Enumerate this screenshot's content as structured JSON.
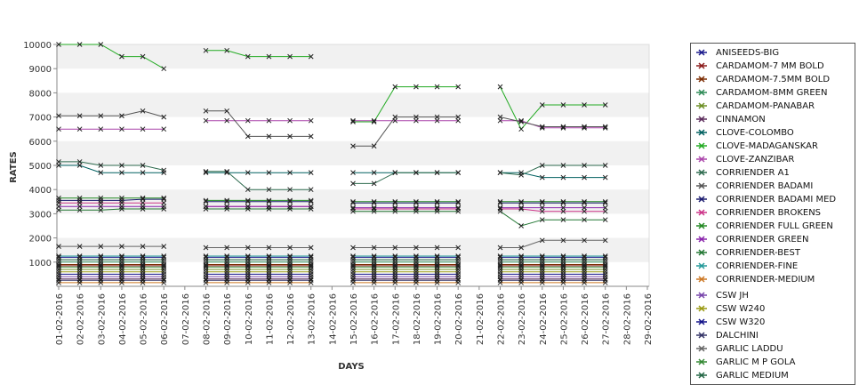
{
  "chart_data": {
    "type": "line",
    "xlabel": "DAYS",
    "ylabel": "RATES",
    "ylim": [
      0,
      10000
    ],
    "yticks": [
      1000,
      2000,
      3000,
      4000,
      5000,
      6000,
      7000,
      8000,
      9000,
      10000
    ],
    "grid": "alternating horizontal bands",
    "legend_position": "right",
    "x": [
      "01-02-2016",
      "02-02-2016",
      "03-02-2016",
      "04-02-2016",
      "05-02-2016",
      "06-02-2016",
      "07-02-2016",
      "08-02-2016",
      "09-02-2016",
      "10-02-2016",
      "11-02-2016",
      "12-02-2016",
      "13-02-2016",
      "14-02-2016",
      "15-02-2016",
      "16-02-2016",
      "17-02-2016",
      "18-02-2016",
      "19-02-2016",
      "20-02-2016",
      "21-02-2016",
      "22-02-2016",
      "23-02-2016",
      "24-02-2016",
      "25-02-2016",
      "26-02-2016",
      "27-02-2016",
      "28-02-2016",
      "29-02-2016"
    ],
    "series": [
      {
        "name": "ANISEEDS-BIG",
        "color": "#1a1a8c",
        "values": [
          1200,
          1200,
          1200,
          1200,
          1200,
          1200,
          null,
          1200,
          1200,
          1200,
          1200,
          1200,
          1200,
          null,
          1200,
          1200,
          1200,
          1200,
          1200,
          1200,
          null,
          1200,
          1200,
          1200,
          1200,
          1200,
          1200,
          null,
          null
        ]
      },
      {
        "name": "CARDAMOM-7 MM BOLD",
        "color": "#8b1a1a",
        "values": [
          850,
          850,
          850,
          850,
          850,
          850,
          null,
          850,
          850,
          850,
          850,
          850,
          850,
          null,
          850,
          850,
          850,
          850,
          850,
          850,
          null,
          850,
          850,
          850,
          850,
          850,
          850,
          null,
          null
        ]
      },
      {
        "name": "CARDAMOM-7.5MM BOLD",
        "color": "#7a2a00",
        "values": [
          900,
          900,
          900,
          900,
          900,
          900,
          null,
          900,
          900,
          900,
          900,
          900,
          900,
          null,
          900,
          900,
          900,
          900,
          900,
          900,
          null,
          900,
          900,
          900,
          900,
          900,
          900,
          null,
          null
        ]
      },
      {
        "name": "CARDAMOM-8MM GREEN",
        "color": "#2e8b57",
        "values": [
          1000,
          1000,
          1000,
          1000,
          1000,
          1000,
          null,
          1000,
          1000,
          1000,
          1000,
          1000,
          1000,
          null,
          1000,
          1000,
          1000,
          1000,
          1000,
          1000,
          null,
          1000,
          1000,
          1000,
          1000,
          1000,
          1000,
          null,
          null
        ]
      },
      {
        "name": "CARDAMOM-PANABAR",
        "color": "#6b8e23",
        "values": [
          700,
          700,
          700,
          700,
          700,
          700,
          null,
          700,
          700,
          700,
          700,
          700,
          700,
          null,
          700,
          700,
          700,
          700,
          700,
          700,
          null,
          700,
          700,
          700,
          700,
          700,
          700,
          null,
          null
        ]
      },
      {
        "name": "CINNAMON",
        "color": "#5a2a5a",
        "values": [
          300,
          300,
          300,
          300,
          300,
          300,
          null,
          300,
          300,
          300,
          300,
          300,
          300,
          null,
          300,
          300,
          300,
          300,
          300,
          300,
          null,
          300,
          300,
          300,
          300,
          300,
          300,
          null,
          null
        ]
      },
      {
        "name": "CLOVE-COLOMBO",
        "color": "#006060",
        "values": [
          5000,
          5000,
          4700,
          4700,
          4700,
          4700,
          null,
          4700,
          4700,
          4700,
          4700,
          4700,
          4700,
          null,
          4700,
          4700,
          4700,
          4700,
          4700,
          4700,
          null,
          4700,
          4700,
          4500,
          4500,
          4500,
          4500,
          null,
          null
        ]
      },
      {
        "name": "CLOVE-MADAGANSKAR",
        "color": "#22aa22",
        "values": [
          10000,
          10000,
          10000,
          9500,
          9500,
          9000,
          null,
          9750,
          9750,
          9500,
          9500,
          9500,
          9500,
          null,
          6800,
          6800,
          8250,
          8250,
          8250,
          8250,
          null,
          8250,
          6500,
          7500,
          7500,
          7500,
          7500,
          null,
          null
        ]
      },
      {
        "name": "CLOVE-ZANZIBAR",
        "color": "#aa44aa",
        "values": [
          6500,
          6500,
          6500,
          6500,
          6500,
          6500,
          null,
          6850,
          6850,
          6850,
          6850,
          6850,
          6850,
          null,
          6850,
          6850,
          6850,
          6850,
          6850,
          6850,
          null,
          6850,
          6850,
          6550,
          6550,
          6550,
          6550,
          null,
          null
        ]
      },
      {
        "name": "CORRIENDER A1",
        "color": "#2e6b4f",
        "values": [
          5150,
          5150,
          5000,
          5000,
          5000,
          4800,
          null,
          4750,
          4750,
          4000,
          4000,
          4000,
          4000,
          null,
          4250,
          4250,
          4700,
          4700,
          4700,
          4700,
          null,
          4700,
          4600,
          5000,
          5000,
          5000,
          5000,
          null,
          null
        ]
      },
      {
        "name": "CORRIENDER BADAMI",
        "color": "#555555",
        "values": [
          7050,
          7050,
          7050,
          7050,
          7250,
          7000,
          null,
          7250,
          7250,
          6200,
          6200,
          6200,
          6200,
          null,
          5800,
          5800,
          7000,
          7000,
          7000,
          7000,
          null,
          7000,
          6800,
          6600,
          6600,
          6600,
          6600,
          null,
          null
        ]
      },
      {
        "name": "CORRIENDER BADAMI MED",
        "color": "#1a1a6e",
        "values": [
          3550,
          3550,
          3550,
          3550,
          3600,
          3600,
          null,
          3500,
          3500,
          3500,
          3500,
          3500,
          3500,
          null,
          3450,
          3450,
          3450,
          3450,
          3450,
          3450,
          null,
          3450,
          3450,
          3450,
          3450,
          3450,
          3450,
          null,
          null
        ]
      },
      {
        "name": "CORRIENDER BROKENS",
        "color": "#cc3388",
        "values": [
          3450,
          3450,
          3450,
          3450,
          3450,
          3450,
          null,
          3300,
          3300,
          3300,
          3300,
          3300,
          3300,
          null,
          3200,
          3200,
          3200,
          3200,
          3200,
          3200,
          null,
          3200,
          3200,
          3100,
          3100,
          3100,
          3100,
          null,
          null
        ]
      },
      {
        "name": "CORRIENDER FULL GREEN",
        "color": "#228822",
        "values": [
          3650,
          3650,
          3650,
          3650,
          3650,
          3650,
          null,
          3550,
          3550,
          3550,
          3550,
          3550,
          3550,
          null,
          3500,
          3500,
          3500,
          3500,
          3500,
          3500,
          null,
          3500,
          3500,
          3500,
          3500,
          3500,
          3500,
          null,
          null
        ]
      },
      {
        "name": "CORRIENDER GREEN",
        "color": "#8822aa",
        "values": [
          3300,
          3300,
          3300,
          3300,
          3300,
          3300,
          null,
          3300,
          3300,
          3300,
          3300,
          3300,
          3300,
          null,
          3250,
          3250,
          3250,
          3250,
          3250,
          3250,
          null,
          3250,
          3250,
          3250,
          3250,
          3250,
          3250,
          null,
          null
        ]
      },
      {
        "name": "CORRIENDER-BEST",
        "color": "#227733",
        "values": [
          3150,
          3150,
          3150,
          3200,
          3200,
          3200,
          null,
          3200,
          3200,
          3200,
          3200,
          3200,
          3200,
          null,
          3100,
          3100,
          3100,
          3100,
          3100,
          3100,
          null,
          3100,
          2500,
          2750,
          2750,
          2750,
          2750,
          null,
          null
        ]
      },
      {
        "name": "CORRIENDER-FINE",
        "color": "#229999",
        "values": [
          1250,
          1250,
          1250,
          1250,
          1250,
          1250,
          null,
          1250,
          1250,
          1250,
          1250,
          1250,
          1250,
          null,
          1250,
          1250,
          1250,
          1250,
          1250,
          1250,
          null,
          1250,
          1250,
          1250,
          1250,
          1250,
          1250,
          null,
          null
        ]
      },
      {
        "name": "CORRIENDER-MEDIUM",
        "color": "#cc7722",
        "values": [
          150,
          150,
          150,
          150,
          150,
          150,
          null,
          150,
          150,
          150,
          150,
          150,
          150,
          null,
          150,
          150,
          150,
          150,
          150,
          150,
          null,
          150,
          150,
          150,
          150,
          150,
          150,
          null,
          null
        ]
      },
      {
        "name": "CSW JH",
        "color": "#7744aa",
        "values": [
          400,
          400,
          400,
          400,
          400,
          400,
          null,
          400,
          400,
          400,
          400,
          400,
          400,
          null,
          400,
          400,
          400,
          400,
          400,
          400,
          null,
          400,
          400,
          400,
          400,
          400,
          400,
          null,
          null
        ]
      },
      {
        "name": "CSW W240",
        "color": "#999911",
        "values": [
          600,
          600,
          600,
          600,
          600,
          600,
          null,
          600,
          600,
          600,
          600,
          600,
          600,
          null,
          600,
          600,
          600,
          600,
          600,
          600,
          null,
          600,
          600,
          600,
          600,
          600,
          600,
          null,
          null
        ]
      },
      {
        "name": "CSW W320",
        "color": "#111188",
        "values": [
          500,
          500,
          500,
          500,
          500,
          500,
          null,
          500,
          500,
          500,
          500,
          500,
          500,
          null,
          500,
          500,
          500,
          500,
          500,
          500,
          null,
          500,
          500,
          500,
          500,
          500,
          500,
          null,
          null
        ]
      },
      {
        "name": "DALCHINI",
        "color": "#333366",
        "values": [
          250,
          250,
          250,
          250,
          250,
          250,
          null,
          250,
          250,
          250,
          250,
          250,
          250,
          null,
          250,
          250,
          250,
          250,
          250,
          250,
          null,
          250,
          250,
          250,
          250,
          250,
          250,
          null,
          null
        ]
      },
      {
        "name": "GARLIC LADDU",
        "color": "#666666",
        "values": [
          1650,
          1650,
          1650,
          1650,
          1650,
          1650,
          null,
          1600,
          1600,
          1600,
          1600,
          1600,
          1600,
          null,
          1600,
          1600,
          1600,
          1600,
          1600,
          1600,
          null,
          1600,
          1600,
          1900,
          1900,
          1900,
          1900,
          null,
          null
        ]
      },
      {
        "name": "GARLIC M P GOLA",
        "color": "#338833",
        "values": [
          800,
          800,
          800,
          800,
          800,
          800,
          null,
          800,
          800,
          800,
          800,
          800,
          800,
          null,
          800,
          800,
          800,
          800,
          800,
          800,
          null,
          800,
          800,
          800,
          800,
          800,
          800,
          null,
          null
        ]
      },
      {
        "name": "GARLIC MEDIUM",
        "color": "#226644",
        "values": [
          1100,
          1100,
          1100,
          1100,
          1100,
          1100,
          null,
          1100,
          1100,
          1100,
          1100,
          1100,
          1100,
          null,
          1100,
          1100,
          1100,
          1100,
          1100,
          1100,
          null,
          1100,
          1100,
          1100,
          1100,
          1100,
          1100,
          null,
          null
        ]
      }
    ]
  }
}
